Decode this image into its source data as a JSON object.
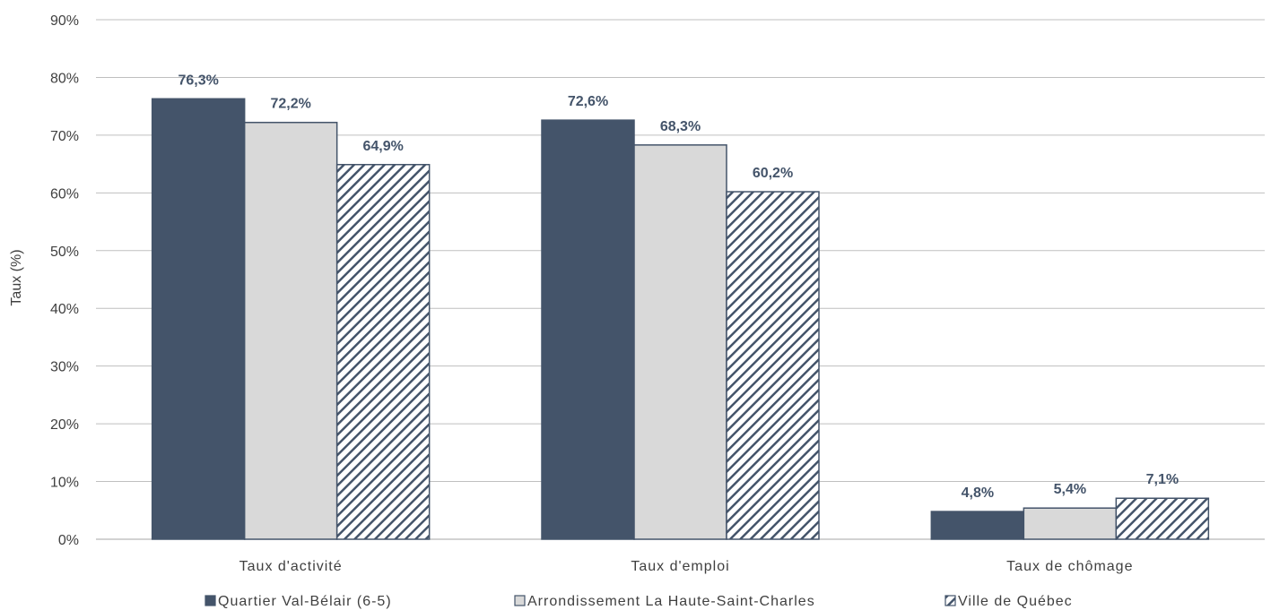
{
  "chart_data": {
    "type": "bar",
    "title": "",
    "xlabel": "",
    "ylabel": "Taux (%)",
    "ylim": [
      0,
      90
    ],
    "y_ticks": [
      "0%",
      "10%",
      "20%",
      "30%",
      "40%",
      "50%",
      "60%",
      "70%",
      "80%",
      "90%"
    ],
    "grid": "horizontal",
    "legend_position": "bottom",
    "categories": [
      "Taux d'activité",
      "Taux d'emploi",
      "Taux de chômage"
    ],
    "series": [
      {
        "name": "Quartier Val-Bélair (6-5)",
        "values": [
          76.3,
          72.6,
          4.8
        ],
        "labels": [
          "76,3%",
          "72,6%",
          "4,8%"
        ],
        "color": "#44546a",
        "fill": "solid"
      },
      {
        "name": "Arrondissement La Haute-Saint-Charles",
        "values": [
          72.2,
          68.3,
          5.4
        ],
        "labels": [
          "72,2%",
          "68,3%",
          "5,4%"
        ],
        "color": "#d9d9d9",
        "fill": "solid"
      },
      {
        "name": "Ville de Québec",
        "values": [
          64.9,
          60.2,
          7.1
        ],
        "labels": [
          "64,9%",
          "60,2%",
          "7,1%"
        ],
        "color": "#44546a",
        "fill": "diagonal-hatch"
      }
    ]
  }
}
